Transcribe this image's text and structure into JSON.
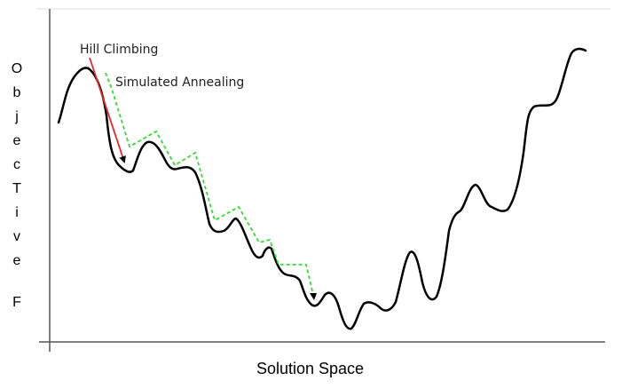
{
  "diagram": {
    "labels": {
      "hill_climbing": "Hill Climbing",
      "simulated_annealing": "Simulated Annealing"
    },
    "y_axis_letters": [
      "O",
      "b",
      "j",
      "e",
      "c",
      "T",
      "i",
      "v",
      "e",
      "F"
    ],
    "x_axis_label": "Solution Space"
  },
  "colors": {
    "curve": "#000000",
    "hill_climbing_arrow": "#e8282e",
    "simulated_annealing_path": "#33dd33",
    "axes": "#555555",
    "top_border": "#dddddd"
  }
}
